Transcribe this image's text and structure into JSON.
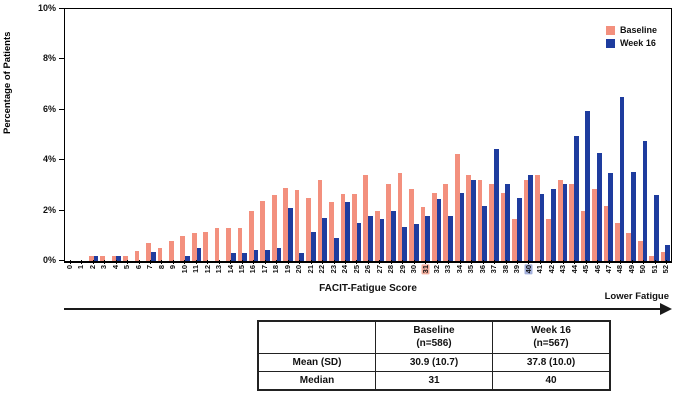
{
  "chart": {
    "y_axis_title": "Percentage of Patients",
    "x_axis_title": "FACIT-Fatigue Score",
    "arrow_label": "Lower Fatigue",
    "y_tick_labels": [
      "0%",
      "2%",
      "4%",
      "6%",
      "8%",
      "10%"
    ],
    "legend": {
      "baseline_label": "Baseline",
      "week16_label": "Week 16"
    },
    "colors": {
      "baseline": "#F3907E",
      "week16": "#1E3C9E",
      "baseline_median_highlight": "#F5AF9E",
      "week16_median_highlight": "#A3B0DC"
    }
  },
  "chart_data": {
    "type": "bar",
    "title": "",
    "xlabel": "FACIT-Fatigue Score",
    "ylabel": "Percentage of Patients",
    "ylim": [
      0,
      10
    ],
    "y_ticks_percent": [
      0,
      2,
      4,
      6,
      8,
      10
    ],
    "grid": false,
    "legend_position": "top-right",
    "categories": [
      0,
      1,
      2,
      3,
      4,
      5,
      6,
      7,
      8,
      9,
      10,
      11,
      12,
      13,
      14,
      15,
      16,
      17,
      18,
      19,
      20,
      21,
      22,
      23,
      24,
      25,
      26,
      27,
      28,
      29,
      30,
      31,
      32,
      33,
      34,
      35,
      36,
      37,
      38,
      39,
      40,
      41,
      42,
      43,
      44,
      45,
      46,
      47,
      48,
      49,
      50,
      51,
      52
    ],
    "series": [
      {
        "name": "Baseline",
        "color": "#F3907E",
        "values": [
          0,
          0,
          0.2,
          0.2,
          0.2,
          0.2,
          0.4,
          0.7,
          0.5,
          0.8,
          1.0,
          1.1,
          1.15,
          1.3,
          1.3,
          1.3,
          2.0,
          2.4,
          2.6,
          2.9,
          2.8,
          2.5,
          3.2,
          2.35,
          2.65,
          2.65,
          3.4,
          2.0,
          3.05,
          3.5,
          2.85,
          2.15,
          2.7,
          3.05,
          4.25,
          3.4,
          3.2,
          3.05,
          2.7,
          1.65,
          3.2,
          3.4,
          1.65,
          3.2,
          3.05,
          2.0,
          2.85,
          2.2,
          1.5,
          1.1,
          0.8,
          0.2,
          0.35
        ]
      },
      {
        "name": "Week 16",
        "color": "#1E3C9E",
        "values": [
          0,
          0,
          0.2,
          0,
          0.2,
          0,
          0,
          0.35,
          0,
          0,
          0.2,
          0.5,
          0,
          0,
          0.3,
          0.3,
          0.45,
          0.45,
          0.5,
          2.1,
          0.3,
          1.15,
          1.7,
          0.9,
          2.35,
          1.5,
          1.8,
          1.65,
          2.0,
          1.35,
          1.45,
          1.8,
          2.45,
          1.8,
          2.7,
          3.2,
          2.2,
          4.45,
          3.05,
          2.5,
          3.4,
          2.65,
          2.85,
          3.05,
          4.95,
          5.95,
          4.3,
          3.5,
          6.5,
          3.55,
          4.75,
          2.6,
          0.65
        ]
      }
    ],
    "highlighted_x_labels": [
      {
        "score": 31,
        "series": "Baseline",
        "meaning": "Baseline median"
      },
      {
        "score": 40,
        "series": "Week 16",
        "meaning": "Week 16 median"
      }
    ]
  },
  "table": {
    "columns": [
      "",
      "Baseline\n(n=586)",
      "Week 16\n(n=567)"
    ],
    "rows": [
      {
        "label": "Mean (SD)",
        "values": [
          "30.9 (10.7)",
          "37.8 (10.0)"
        ]
      },
      {
        "label": "Median",
        "values": [
          "31",
          "40"
        ]
      }
    ]
  }
}
